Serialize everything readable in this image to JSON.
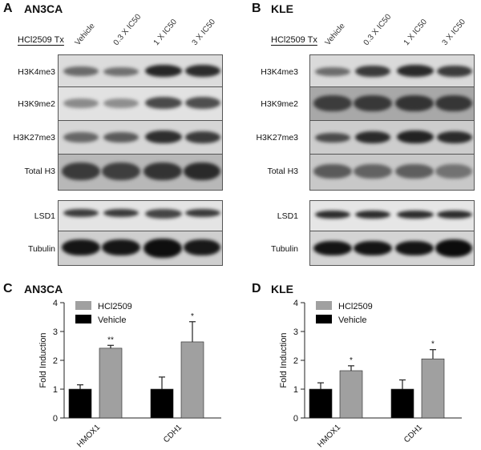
{
  "panels": {
    "A": {
      "letter": "A",
      "title": "AN3CA"
    },
    "B": {
      "letter": "B",
      "title": "KLE"
    },
    "C": {
      "letter": "C",
      "title": "AN3CA"
    },
    "D": {
      "letter": "D",
      "title": "KLE"
    }
  },
  "blot": {
    "treatment_label": "HCl2509 Tx",
    "lanes": [
      "Vehicle",
      "0.3 X IC50",
      "1 X IC50",
      "3 X IC50"
    ],
    "rows_group1": [
      "H3K4me3",
      "H3K9me2",
      "H3K27me3",
      "Total H3"
    ],
    "rows_group2": [
      "LSD1",
      "Tubulin"
    ]
  },
  "chart_data": [
    {
      "type": "bar",
      "title": "AN3CA",
      "categories": [
        "HMOX1",
        "CDH1"
      ],
      "ylabel": "Fold Induction",
      "ylim": [
        0,
        4
      ],
      "yticks": [
        0,
        1,
        2,
        3,
        4
      ],
      "legend_position": "top-left",
      "series": [
        {
          "name": "Vehicle",
          "color": "#000000",
          "values": [
            1.0,
            1.0
          ],
          "errors": [
            0.15,
            0.42
          ],
          "annotations": [
            "",
            ""
          ]
        },
        {
          "name": "HCl2509",
          "color": "#a0a0a0",
          "values": [
            2.42,
            2.64
          ],
          "errors": [
            0.1,
            0.7
          ],
          "annotations": [
            "**",
            "*"
          ]
        }
      ]
    },
    {
      "type": "bar",
      "title": "KLE",
      "categories": [
        "HMOX1",
        "CDH1"
      ],
      "ylabel": "Fold Induction",
      "ylim": [
        0,
        4
      ],
      "yticks": [
        0,
        1,
        2,
        3,
        4
      ],
      "legend_position": "top-left",
      "series": [
        {
          "name": "Vehicle",
          "color": "#000000",
          "values": [
            1.0,
            1.0
          ],
          "errors": [
            0.22,
            0.32
          ],
          "annotations": [
            "",
            ""
          ]
        },
        {
          "name": "HCl2509",
          "color": "#a0a0a0",
          "values": [
            1.64,
            2.05
          ],
          "errors": [
            0.17,
            0.32
          ],
          "annotations": [
            "*",
            "*"
          ]
        }
      ]
    }
  ]
}
